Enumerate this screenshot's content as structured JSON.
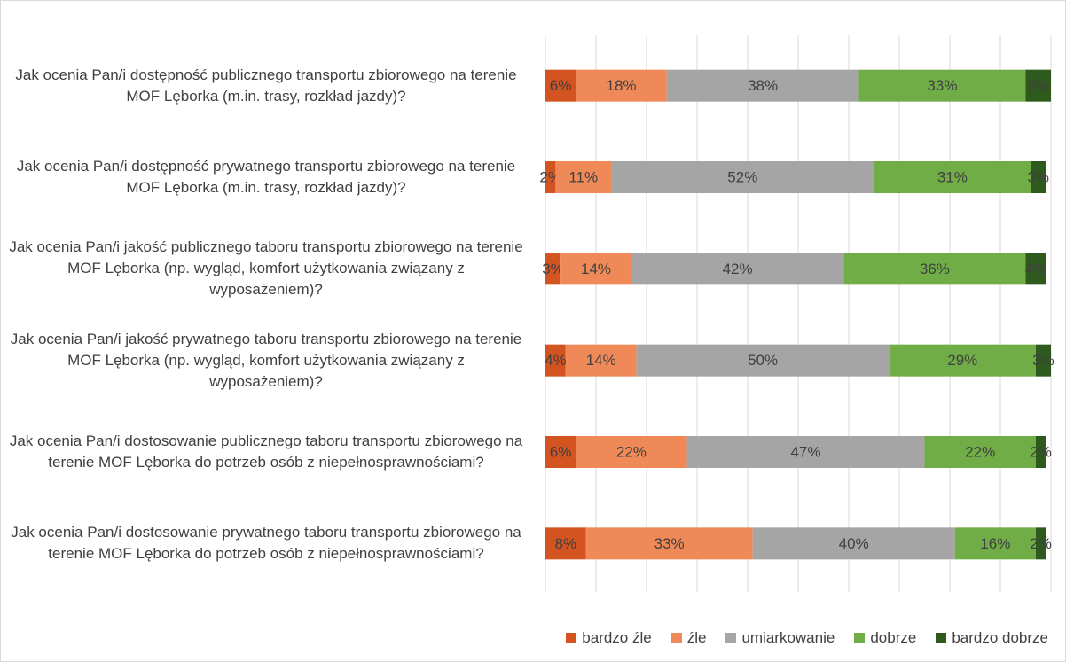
{
  "chart_data": {
    "type": "stacked-bar-horizontal",
    "categories": [
      "Jak ocenia Pan/i dostępność publicznego transportu zbiorowego na terenie MOF Lęborka (m.in. trasy, rozkład jazdy)?",
      "Jak ocenia Pan/i dostępność prywatnego transportu zbiorowego na terenie MOF Lęborka (m.in. trasy, rozkład jazdy)?",
      "Jak ocenia Pan/i jakość publicznego taboru transportu zbiorowego na terenie MOF Lęborka (np. wygląd, komfort użytkowania związany z wyposażeniem)?",
      "Jak ocenia Pan/i jakość prywatnego taboru transportu zbiorowego na terenie MOF Lęborka (np. wygląd, komfort użytkowania związany z wyposażeniem)?",
      "Jak ocenia Pan/i dostosowanie publicznego taboru transportu zbiorowego na terenie MOF Lęborka do potrzeb osób z niepełnosprawnościami?",
      "Jak ocenia Pan/i dostosowanie prywatnego taboru transportu zbiorowego na terenie MOF Lęborka do potrzeb osób z niepełnosprawnościami?"
    ],
    "series": [
      {
        "name": "bardzo źle",
        "color": "#d35420",
        "values": [
          6,
          2,
          3,
          4,
          6,
          8
        ],
        "value_labels": [
          "6%",
          "2%",
          "3%",
          "4%",
          "6%",
          "8%"
        ]
      },
      {
        "name": "źle",
        "color": "#ef8a58",
        "values": [
          18,
          11,
          14,
          14,
          22,
          33
        ],
        "value_labels": [
          "18%",
          "11%",
          "14%",
          "14%",
          "22%",
          "33%"
        ]
      },
      {
        "name": "umiarkowanie",
        "color": "#a5a5a5",
        "values": [
          38,
          52,
          42,
          50,
          47,
          40
        ],
        "value_labels": [
          "38%",
          "52%",
          "42%",
          "50%",
          "47%",
          "40%"
        ]
      },
      {
        "name": "dobrze",
        "color": "#70ad47",
        "values": [
          33,
          31,
          36,
          29,
          22,
          16
        ],
        "value_labels": [
          "33%",
          "31%",
          "36%",
          "29%",
          "22%",
          "16%"
        ]
      },
      {
        "name": "bardzo dobrze",
        "color": "#2e5a1e",
        "values": [
          5,
          3,
          4,
          3,
          2,
          2
        ],
        "value_labels": [
          "5%",
          "3%",
          "4%",
          "3%",
          "2%",
          "2%"
        ]
      }
    ],
    "xlim": [
      0,
      100
    ],
    "xticks": [
      0,
      10,
      20,
      30,
      40,
      50,
      60,
      70,
      80,
      90,
      100
    ],
    "grid": true,
    "legend": "bottom-right"
  }
}
